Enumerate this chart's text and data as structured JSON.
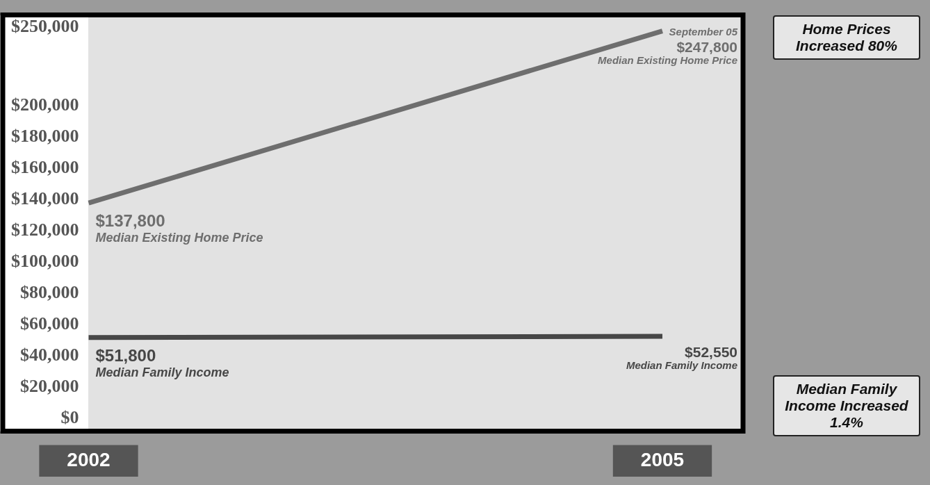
{
  "chart_data": {
    "type": "line",
    "categories": [
      "2002",
      "2005"
    ],
    "series": [
      {
        "color": "#6e6e6e",
        "values": [
          137800,
          247800
        ],
        "value_labels": [
          "$137,800",
          "$247,800"
        ]
      },
      {
        "color": "#474747",
        "values": [
          51800,
          52550
        ],
        "value_labels": [
          "$51,800",
          "$52,550"
        ]
      }
    ],
    "ylim": [
      -8000,
      258000
    ],
    "yticks": [
      {
        "value": 0,
        "label": "$0"
      },
      {
        "value": 20000,
        "label": "$20,000"
      },
      {
        "value": 40000,
        "label": "$40,000"
      },
      {
        "value": 60000,
        "label": "$60,000"
      },
      {
        "value": 80000,
        "label": "$80,000"
      },
      {
        "value": 100000,
        "label": "$100,000"
      },
      {
        "value": 120000,
        "label": "$120,000"
      },
      {
        "value": 140000,
        "label": "$140,000"
      },
      {
        "value": 160000,
        "label": "$160,000"
      },
      {
        "value": 180000,
        "label": "$180,000"
      },
      {
        "value": 200000,
        "label": "$200,000"
      },
      {
        "value": 250000,
        "label": "$250,000"
      }
    ],
    "annotations": [
      {
        "text": "Median Existing Home Price",
        "x": "2002",
        "y": 137800
      },
      {
        "text": "Median Existing Home Price",
        "x": "2005",
        "y": 247800
      },
      {
        "text": "September 05",
        "x": "2005",
        "y": 247800
      },
      {
        "text": "Median Family Income",
        "x": "2002",
        "y": 51800
      },
      {
        "text": "Median Family Income",
        "x": "2005",
        "y": 52550
      },
      "Home Prices Increased 80%",
      "Median Family Income Increased 1.4%"
    ],
    "grid": false,
    "legend": false,
    "marker": "none",
    "line_style": "solid"
  }
}
